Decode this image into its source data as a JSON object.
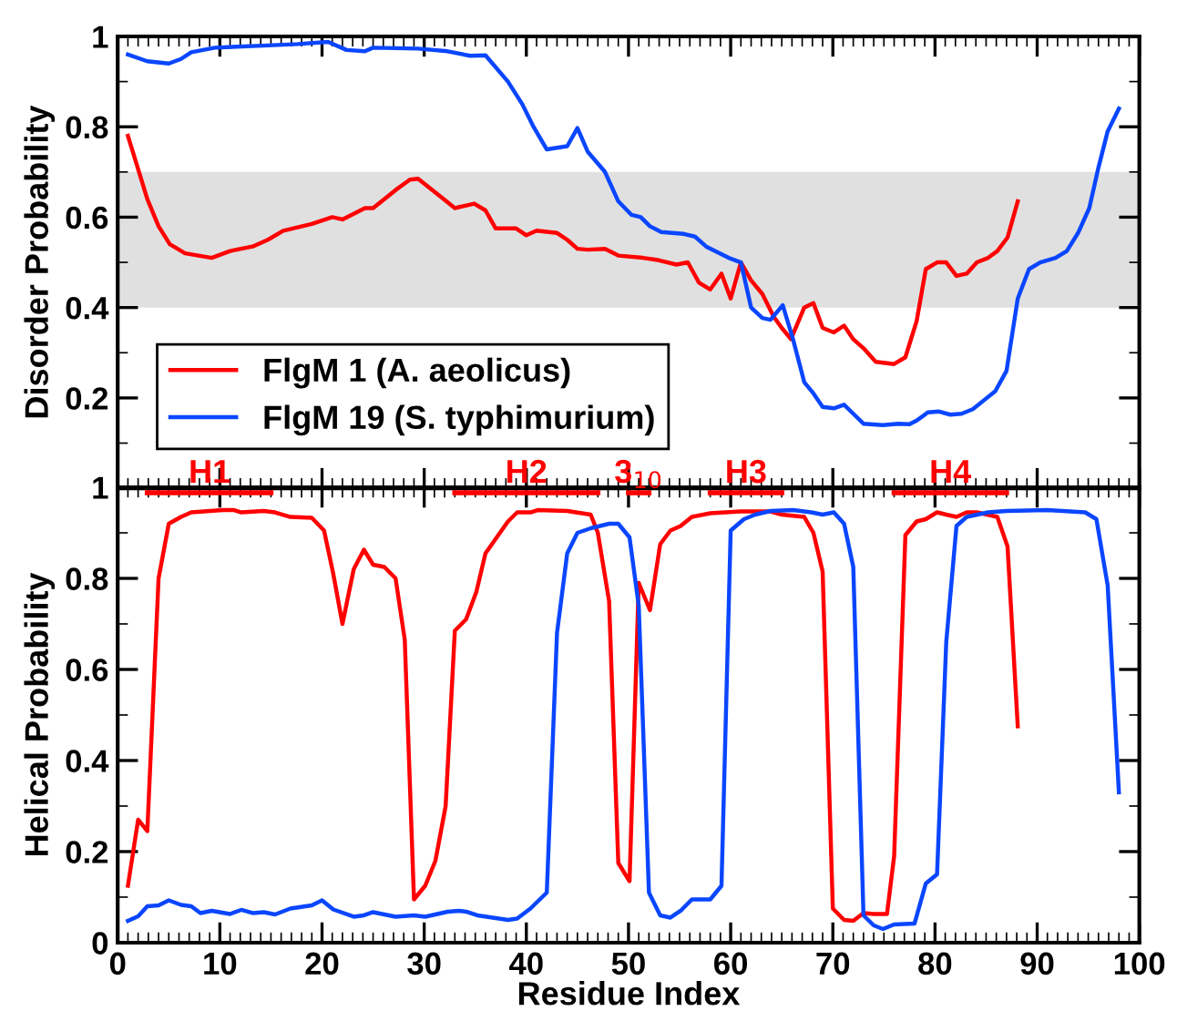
{
  "chart_data": [
    {
      "type": "line",
      "ylabel": "Disorder Probability",
      "xlim": [
        0,
        100
      ],
      "ylim": [
        0,
        1
      ],
      "xticks": [
        0,
        10,
        20,
        30,
        40,
        50,
        60,
        70,
        80,
        90,
        100
      ],
      "yticks": [
        0.2,
        0.4,
        0.6,
        0.8,
        {
          "value": 1,
          "label": "1"
        }
      ],
      "tick_labels": "y",
      "legend": "bottom left",
      "bands": [
        {
          "axis": "y",
          "from": 0.4,
          "to": 0.7,
          "color": "#e0e0e0"
        }
      ],
      "series": [
        {
          "name": "FlgM 1 (A. aeolicus)",
          "color": "#ff0000",
          "x": [
            1,
            2.9,
            4,
            5.1,
            6.6,
            9.2,
            11,
            13.2,
            14.7,
            16.2,
            19,
            21,
            22,
            24.2,
            25,
            27.2,
            28.6,
            29.4,
            31.9,
            33,
            34.9,
            36,
            37,
            39,
            40,
            41,
            43,
            44,
            45,
            46,
            47.7,
            49,
            51.4,
            52.9,
            54.7,
            55.8,
            56.9,
            58,
            59.1,
            60,
            61,
            62,
            63.1,
            64.2,
            65,
            65.9,
            67.2,
            68.1,
            69,
            70.1,
            71.1,
            72,
            73,
            74.2,
            76,
            77.1,
            78.2,
            79.1,
            80.2,
            81.1,
            82.1,
            83.1,
            84.1,
            85.2,
            86.1,
            87.1,
            88.1
          ],
          "values": [
            0.78,
            0.64,
            0.58,
            0.54,
            0.52,
            0.51,
            0.525,
            0.535,
            0.55,
            0.57,
            0.585,
            0.6,
            0.595,
            0.62,
            0.62,
            0.66,
            0.683,
            0.685,
            0.64,
            0.62,
            0.63,
            0.615,
            0.575,
            0.575,
            0.56,
            0.57,
            0.565,
            0.55,
            0.53,
            0.528,
            0.53,
            0.515,
            0.51,
            0.505,
            0.495,
            0.5,
            0.455,
            0.44,
            0.475,
            0.42,
            0.5,
            0.46,
            0.43,
            0.38,
            0.355,
            0.33,
            0.4,
            0.41,
            0.355,
            0.345,
            0.36,
            0.33,
            0.31,
            0.28,
            0.275,
            0.29,
            0.37,
            0.485,
            0.5,
            0.5,
            0.47,
            0.475,
            0.5,
            0.51,
            0.525,
            0.555,
            0.635
          ]
        },
        {
          "name": "FlgM 19 (S. typhimurium)",
          "color": "#0a46ff",
          "x": [
            1,
            2.9,
            5,
            6.2,
            7.2,
            9.5,
            14.7,
            17.6,
            20.6,
            22.4,
            24.2,
            25,
            29.4,
            32.3,
            34.5,
            36,
            38.2,
            39.6,
            40.7,
            42,
            44,
            45,
            46,
            47.7,
            49,
            50.3,
            51.2,
            52.1,
            53.2,
            55.4,
            56.5,
            57.6,
            59.8,
            61,
            62,
            63.1,
            63.9,
            65.1,
            66.1,
            67.2,
            68.1,
            69,
            70.1,
            71.1,
            72,
            73,
            74.9,
            76.4,
            77.5,
            78.2,
            79.3,
            80.4,
            81.5,
            82.6,
            83.7,
            84.8,
            85.9,
            87,
            88.1,
            89.2,
            90.3,
            91.8,
            92.9,
            94,
            95.1,
            96,
            96.9,
            98
          ],
          "values": [
            0.96,
            0.945,
            0.94,
            0.95,
            0.965,
            0.975,
            0.98,
            0.983,
            0.988,
            0.97,
            0.967,
            0.975,
            0.973,
            0.967,
            0.957,
            0.958,
            0.9,
            0.85,
            0.8,
            0.75,
            0.757,
            0.797,
            0.745,
            0.7,
            0.635,
            0.605,
            0.6,
            0.58,
            0.567,
            0.563,
            0.557,
            0.535,
            0.51,
            0.5,
            0.4,
            0.377,
            0.373,
            0.405,
            0.33,
            0.235,
            0.21,
            0.18,
            0.177,
            0.185,
            0.165,
            0.143,
            0.14,
            0.143,
            0.142,
            0.15,
            0.168,
            0.17,
            0.163,
            0.165,
            0.175,
            0.195,
            0.215,
            0.26,
            0.42,
            0.485,
            0.5,
            0.51,
            0.525,
            0.565,
            0.62,
            0.71,
            0.79,
            0.84
          ]
        }
      ]
    },
    {
      "type": "line",
      "xlabel": "Residue Index",
      "ylabel": "Helical Probability",
      "xlim": [
        0,
        100
      ],
      "ylim": [
        0,
        1
      ],
      "xticks": [
        0,
        10,
        20,
        30,
        40,
        50,
        60,
        70,
        80,
        90,
        100
      ],
      "yticks": [
        0,
        0.2,
        0.4,
        0.6,
        0.8,
        {
          "value": 1,
          "label": "1"
        }
      ],
      "annotations": [
        {
          "text": "H1",
          "x": 9,
          "y": 0.995
        },
        {
          "text": "H2",
          "x": 40,
          "y": 0.995
        },
        {
          "text": "3$_{10}$",
          "x": 51,
          "y": 0.995
        },
        {
          "text": "H3",
          "x": 61.5,
          "y": 0.995
        },
        {
          "text": "H4",
          "x": 81.5,
          "y": 0.995
        }
      ],
      "series": [
        {
          "color": "#ff0000",
          "x": [
            2.9,
            15
          ],
          "values": [
            0.988,
            0.988
          ]
        },
        {
          "color": "#ff0000",
          "x": [
            33,
            47
          ],
          "values": [
            0.988,
            0.988
          ]
        },
        {
          "color": "#ff0000",
          "x": [
            50,
            52
          ],
          "values": [
            0.988,
            0.988
          ]
        },
        {
          "color": "#ff0000",
          "x": [
            58,
            65
          ],
          "values": [
            0.988,
            0.988
          ]
        },
        {
          "color": "#ff0000",
          "x": [
            76,
            87
          ],
          "values": [
            0.988,
            0.988
          ]
        },
        {
          "color": "#ff0000",
          "x": [
            1,
            2,
            2.9,
            4,
            5,
            6.2,
            7.2,
            10.3,
            11.4,
            12.1,
            14.3,
            15.4,
            16.9,
            19,
            20.2,
            21.1,
            22,
            23.1,
            24.1,
            25,
            26.1,
            27.2,
            28.1,
            29,
            30.1,
            31.1,
            32.1,
            33,
            34.1,
            35.1,
            36,
            37.1,
            38.2,
            39.1,
            40.4,
            41.1,
            44,
            46.3,
            47,
            48.1,
            49,
            50.1,
            51,
            52.1,
            53.1,
            54.1,
            55.1,
            56.2,
            58,
            61,
            63.9,
            65,
            67.2,
            68.1,
            69,
            70,
            71.1,
            72,
            73,
            74,
            75.3,
            76,
            77.1,
            78.2,
            79.1,
            80.2,
            81.1,
            82.1,
            83.1,
            84.1,
            86.1,
            87.1,
            88.1
          ],
          "values": [
            0.125,
            0.27,
            0.245,
            0.8,
            0.92,
            0.935,
            0.945,
            0.95,
            0.95,
            0.945,
            0.948,
            0.945,
            0.935,
            0.933,
            0.905,
            0.81,
            0.7,
            0.82,
            0.863,
            0.83,
            0.825,
            0.8,
            0.665,
            0.095,
            0.125,
            0.18,
            0.3,
            0.685,
            0.71,
            0.77,
            0.855,
            0.89,
            0.925,
            0.945,
            0.945,
            0.95,
            0.948,
            0.94,
            0.9,
            0.75,
            0.175,
            0.135,
            0.79,
            0.73,
            0.875,
            0.905,
            0.915,
            0.935,
            0.943,
            0.947,
            0.947,
            0.94,
            0.935,
            0.9,
            0.815,
            0.075,
            0.05,
            0.048,
            0.065,
            0.063,
            0.063,
            0.19,
            0.895,
            0.925,
            0.93,
            0.945,
            0.94,
            0.935,
            0.945,
            0.945,
            0.935,
            0.87,
            0.475
          ]
        },
        {
          "color": "#0a46ff",
          "x": [
            1,
            2,
            2.9,
            4,
            5,
            6.2,
            7.2,
            8.1,
            9.2,
            11,
            12.1,
            13.2,
            14.3,
            15.4,
            16.9,
            19,
            20,
            21.1,
            23.1,
            24.1,
            25,
            27.2,
            29,
            30.1,
            32.3,
            33.4,
            34.1,
            35.2,
            38.2,
            39.1,
            40.4,
            42,
            43,
            44,
            45,
            46.3,
            48.1,
            49,
            50.1,
            51,
            52,
            53.1,
            54.1,
            55.1,
            56.2,
            58,
            59.1,
            60,
            61.3,
            62.4,
            63.9,
            66.1,
            67.9,
            69,
            70.1,
            71.1,
            72,
            73,
            74,
            74.9,
            76,
            78,
            79.1,
            80.2,
            81.1,
            82.1,
            83.1,
            85.2,
            87,
            91,
            94.7,
            95.8,
            96.9,
            98
          ],
          "values": [
            0.048,
            0.058,
            0.08,
            0.082,
            0.093,
            0.083,
            0.08,
            0.065,
            0.07,
            0.063,
            0.072,
            0.065,
            0.067,
            0.062,
            0.075,
            0.082,
            0.093,
            0.073,
            0.057,
            0.06,
            0.067,
            0.057,
            0.06,
            0.057,
            0.068,
            0.07,
            0.068,
            0.06,
            0.05,
            0.053,
            0.075,
            0.11,
            0.68,
            0.855,
            0.9,
            0.91,
            0.92,
            0.92,
            0.89,
            0.74,
            0.11,
            0.06,
            0.055,
            0.07,
            0.095,
            0.095,
            0.125,
            0.905,
            0.93,
            0.94,
            0.948,
            0.95,
            0.945,
            0.94,
            0.945,
            0.92,
            0.825,
            0.06,
            0.038,
            0.03,
            0.04,
            0.042,
            0.13,
            0.15,
            0.66,
            0.915,
            0.935,
            0.945,
            0.948,
            0.95,
            0.945,
            0.93,
            0.785,
            0.33
          ]
        }
      ]
    }
  ]
}
